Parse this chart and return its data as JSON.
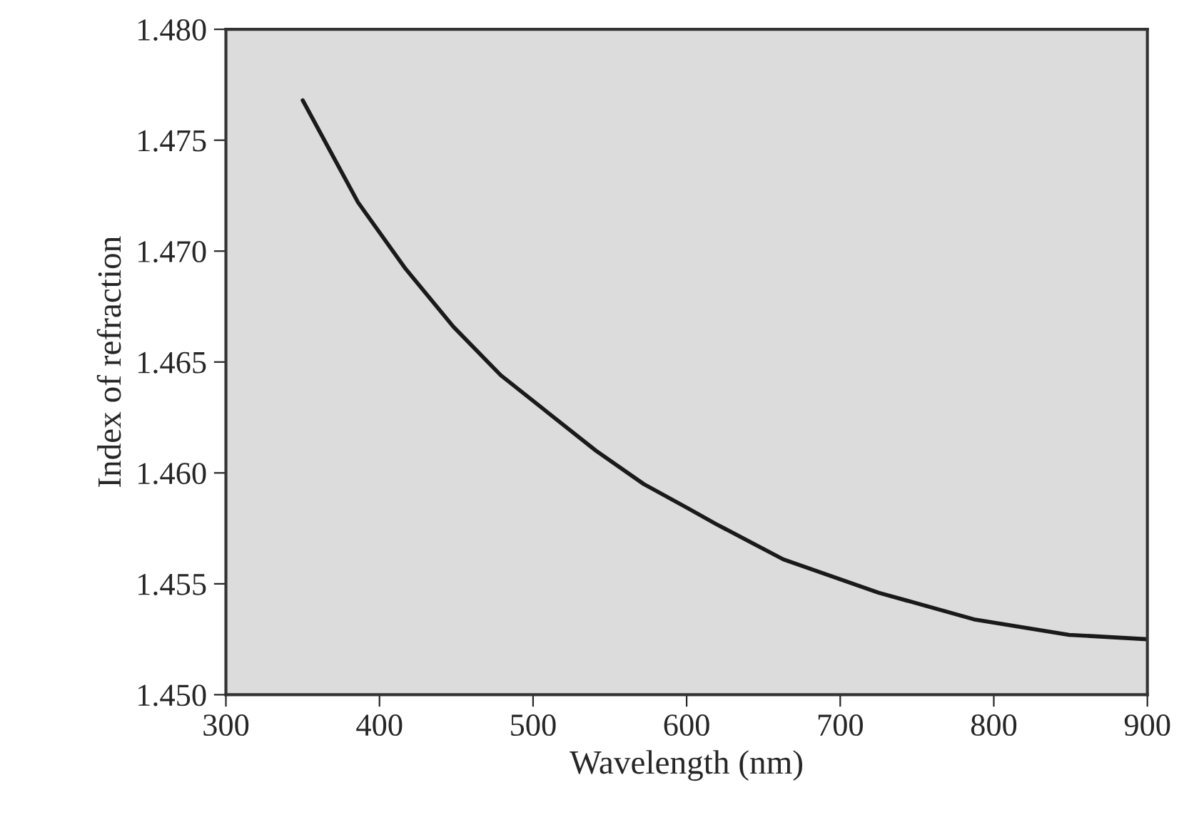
{
  "chart_data": {
    "type": "line",
    "xlabel": "Wavelength (nm)",
    "ylabel": "Index of refraction",
    "x": [
      350,
      386,
      417,
      448,
      479,
      510,
      541,
      572,
      601,
      619,
      663,
      725,
      787,
      849,
      900
    ],
    "series": [
      {
        "color": "#1a1a1a",
        "values": [
          1.4768,
          1.4722,
          1.4692,
          1.4666,
          1.4644,
          1.4627,
          1.461,
          1.4595,
          1.4584,
          1.4577,
          1.4561,
          1.4546,
          1.4534,
          1.4527,
          1.4525
        ]
      }
    ],
    "xlim": [
      300,
      900
    ],
    "xticks": [
      300,
      400,
      500,
      600,
      700,
      800,
      900
    ],
    "ylim": [
      1.45,
      1.48
    ],
    "yticks": [
      {
        "value": 1.45,
        "label": "1.450"
      },
      {
        "value": 1.455,
        "label": "1.455"
      },
      {
        "value": 1.46,
        "label": "1.460"
      },
      {
        "value": 1.465,
        "label": "1.465"
      },
      {
        "value": 1.47,
        "label": "1.470"
      },
      {
        "value": 1.475,
        "label": "1.475"
      },
      {
        "value": 1.48,
        "label": "1.480"
      }
    ],
    "grid": false,
    "legend": false
  }
}
